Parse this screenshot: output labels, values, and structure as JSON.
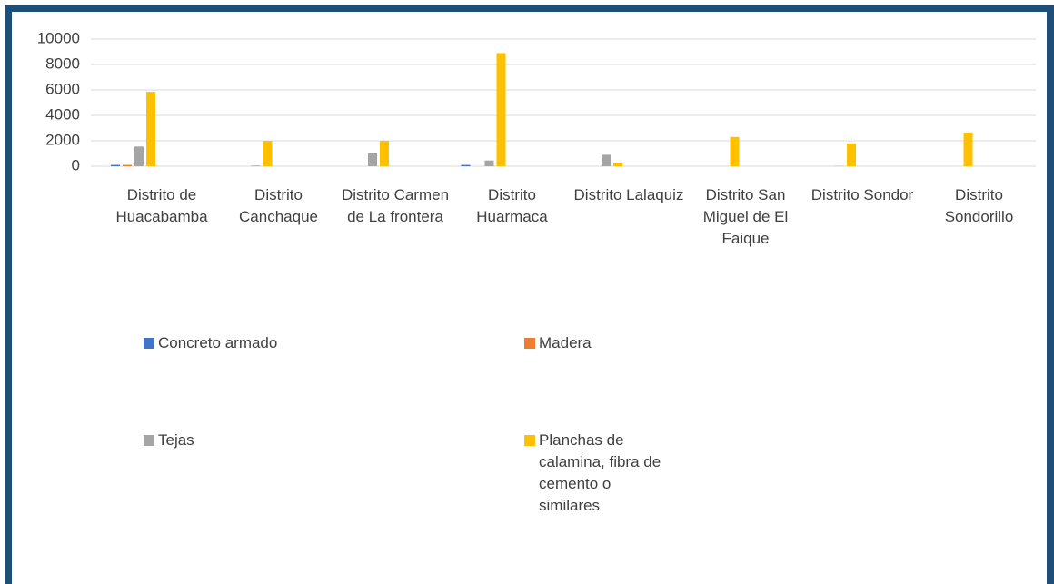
{
  "chart_data": {
    "type": "bar",
    "categories": [
      "Distrito de Huacabamba",
      "Distrito Canchaque",
      "Distrito Carmen de La frontera",
      "Distrito Huarmaca",
      "Distrito Lalaquiz",
      "Distrito San Miguel de El Faique",
      "Distrito Sondor",
      "Distrito Sondorillo"
    ],
    "series": [
      {
        "name": "Concreto armado",
        "color": "#4472c4",
        "values": [
          100,
          0,
          0,
          100,
          0,
          0,
          0,
          0
        ]
      },
      {
        "name": "Madera",
        "color": "#ed7d31",
        "values": [
          100,
          0,
          0,
          0,
          0,
          0,
          0,
          0
        ]
      },
      {
        "name": "Tejas",
        "color": "#a5a5a5",
        "values": [
          1550,
          50,
          1000,
          450,
          900,
          0,
          20,
          0
        ]
      },
      {
        "name": "Planchas de calamina, fibra de cemento o similares",
        "color": "#ffc000",
        "values": [
          5850,
          2000,
          2000,
          8900,
          250,
          2300,
          1800,
          2650
        ]
      }
    ],
    "ylim": [
      0,
      10000
    ],
    "yticks": [
      0,
      2000,
      4000,
      6000,
      8000,
      10000
    ],
    "grid": true
  }
}
